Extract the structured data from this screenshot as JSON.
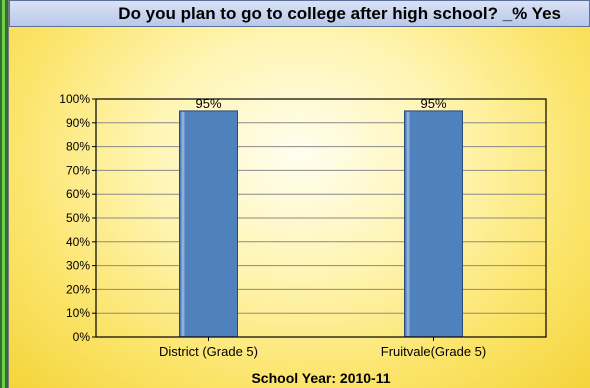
{
  "chart_data": {
    "type": "bar",
    "title": "Do you plan to go to college after high school? _% Yes",
    "xlabel": "School Year: 2010-11",
    "ylabel": "",
    "categories": [
      "District (Grade 5)",
      "Fruitvale(Grade 5)"
    ],
    "values": [
      95,
      95
    ],
    "data_labels": [
      "95%",
      "95%"
    ],
    "ylim": [
      0,
      100
    ],
    "yticks": [
      "0%",
      "10%",
      "20%",
      "30%",
      "40%",
      "50%",
      "60%",
      "70%",
      "80%",
      "90%",
      "100%"
    ],
    "grid": true,
    "legend": "none",
    "colors": {
      "bar": "#4f81bd",
      "bar_edge": "#2a4a78",
      "title_bar": "#c6d3ee",
      "background": "#fbe46a"
    }
  }
}
